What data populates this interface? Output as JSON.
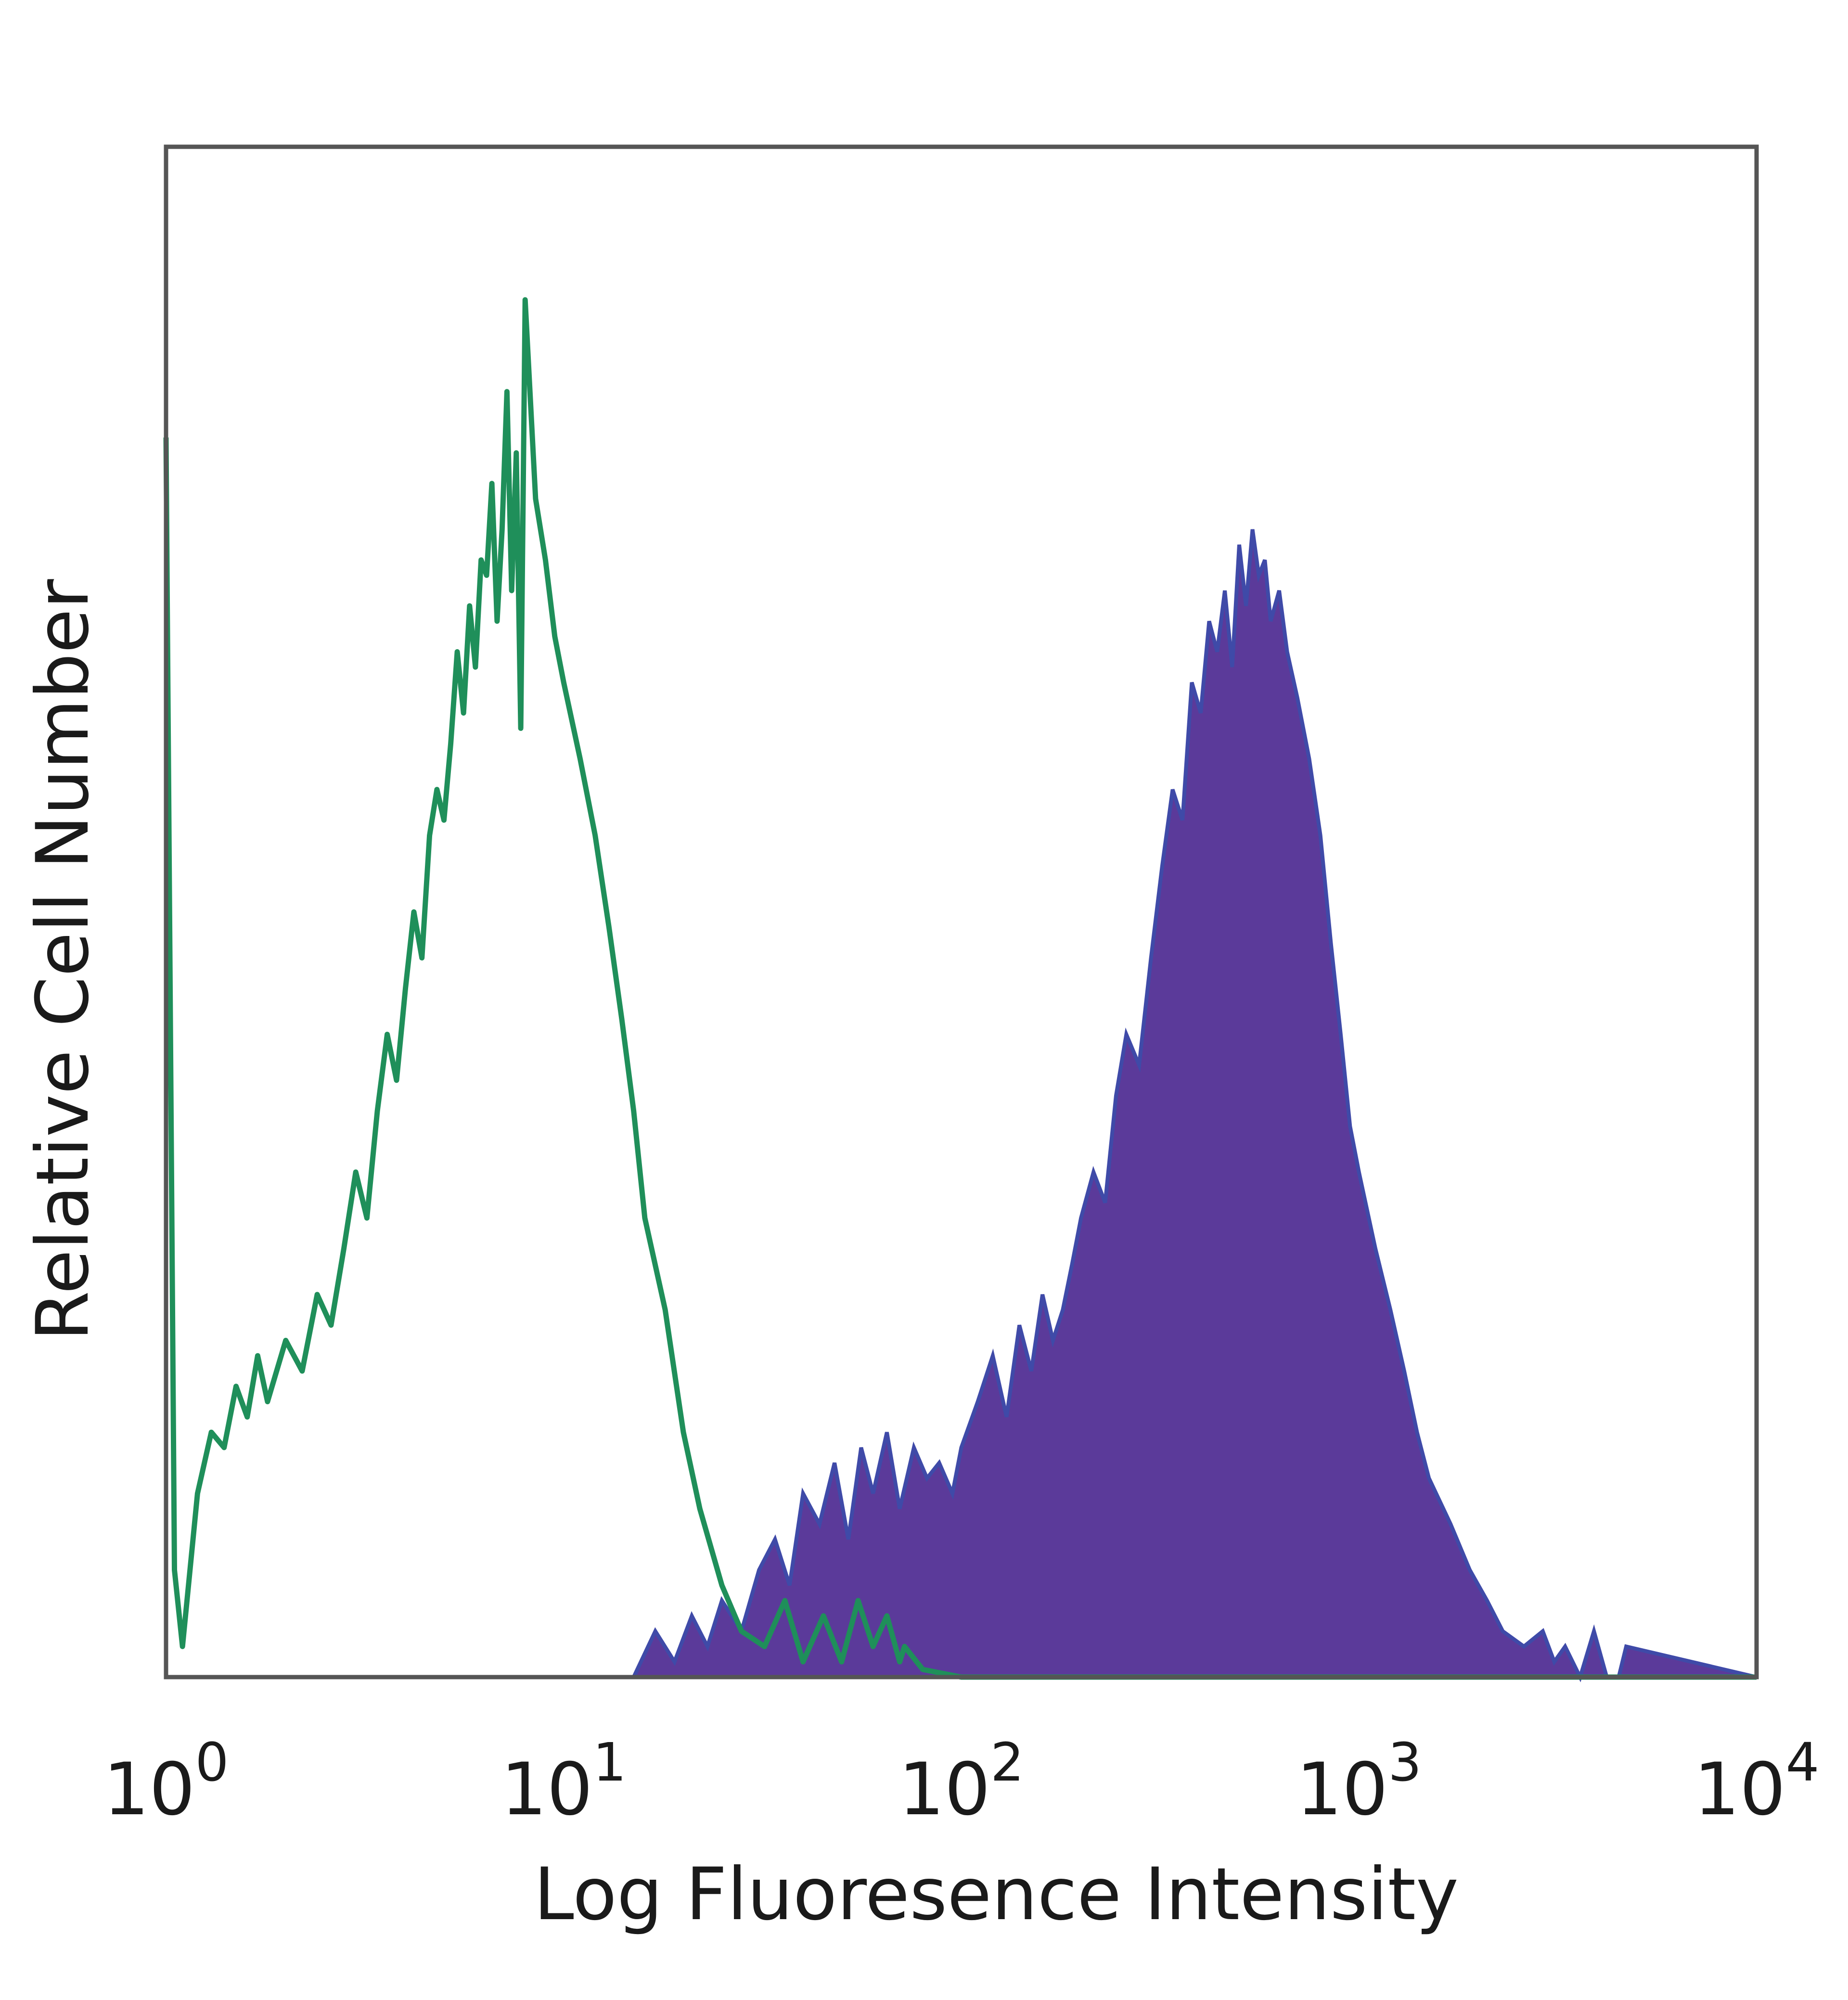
{
  "chart_data": {
    "type": "area",
    "title": "",
    "xlabel": "Log Fluoresence Intensity",
    "ylabel": "Relative Cell Number",
    "xscale": "log",
    "xlim": [
      1,
      10000
    ],
    "ylim": [
      0,
      1
    ],
    "grid": false,
    "x_ticks": [
      {
        "base": "10",
        "exp": "0",
        "value": 1
      },
      {
        "base": "10",
        "exp": "1",
        "value": 10
      },
      {
        "base": "10",
        "exp": "2",
        "value": 100
      },
      {
        "base": "10",
        "exp": "3",
        "value": 1000
      },
      {
        "base": "10",
        "exp": "4",
        "value": 10000
      }
    ],
    "series": [
      {
        "style": "outline",
        "color": "#1f8f5a",
        "x": [
          1.0,
          1.05,
          1.1,
          1.2,
          1.3,
          1.4,
          1.5,
          1.6,
          1.7,
          1.8,
          2.0,
          2.2,
          2.4,
          2.6,
          2.8,
          3.0,
          3.2,
          3.4,
          3.6,
          3.8,
          4.0,
          4.2,
          4.4,
          4.6,
          4.8,
          5.0,
          5.2,
          5.4,
          5.6,
          5.8,
          6.0,
          6.2,
          6.4,
          6.6,
          6.8,
          7.0,
          7.2,
          7.4,
          7.6,
          7.8,
          8.0,
          8.5,
          9.0,
          9.5,
          10.0,
          11.0,
          12.0,
          13.0,
          14.0,
          15.0,
          16.0,
          18.0,
          20.0,
          22.0,
          25.0,
          28.0,
          32.0,
          36.0,
          40.0,
          45.0,
          50.0,
          55.0,
          60.0,
          65.0,
          70.0,
          72.0,
          80.0,
          100.0,
          1000.0,
          10000.0
        ],
        "values": [
          0.81,
          0.07,
          0.02,
          0.12,
          0.16,
          0.15,
          0.19,
          0.17,
          0.21,
          0.18,
          0.22,
          0.2,
          0.25,
          0.23,
          0.28,
          0.33,
          0.3,
          0.37,
          0.42,
          0.39,
          0.45,
          0.5,
          0.47,
          0.55,
          0.58,
          0.56,
          0.61,
          0.67,
          0.63,
          0.7,
          0.66,
          0.73,
          0.72,
          0.78,
          0.69,
          0.75,
          0.84,
          0.71,
          0.8,
          0.62,
          0.9,
          0.77,
          0.73,
          0.68,
          0.65,
          0.6,
          0.55,
          0.49,
          0.43,
          0.37,
          0.3,
          0.24,
          0.16,
          0.11,
          0.06,
          0.03,
          0.02,
          0.05,
          0.01,
          0.04,
          0.01,
          0.05,
          0.02,
          0.04,
          0.01,
          0.02,
          0.005,
          0.0,
          0.0,
          0.0
        ]
      },
      {
        "style": "filled",
        "color": "#5b3a9a",
        "x": [
          1.0,
          10.0,
          15.0,
          17.0,
          19.0,
          21.0,
          23.0,
          25.0,
          28.0,
          31.0,
          34.0,
          37.0,
          40.0,
          44.0,
          48.0,
          52.0,
          56.0,
          60.0,
          65.0,
          70.0,
          76.0,
          82.0,
          88.0,
          95.0,
          100.0,
          110.0,
          120.0,
          130.0,
          140.0,
          150.0,
          160.0,
          170.0,
          180.0,
          190.0,
          200.0,
          215.0,
          230.0,
          245.0,
          260.0,
          280.0,
          300.0,
          320.0,
          340.0,
          360.0,
          380.0,
          400.0,
          420.0,
          440.0,
          460.0,
          480.0,
          500.0,
          520.0,
          540.0,
          560.0,
          580.0,
          600.0,
          630.0,
          660.0,
          700.0,
          750.0,
          800.0,
          850.0,
          900.0,
          950.0,
          1000.0,
          1100.0,
          1200.0,
          1300.0,
          1400.0,
          1500.0,
          1700.0,
          1900.0,
          2100.0,
          2300.0,
          2600.0,
          2900.0,
          3100.0,
          3300.0,
          3600.0,
          3900.0,
          4200.0,
          4500.0,
          4700.0,
          10000.0
        ],
        "values": [
          0.0,
          0.0,
          0.0,
          0.03,
          0.01,
          0.04,
          0.02,
          0.05,
          0.03,
          0.07,
          0.09,
          0.06,
          0.12,
          0.1,
          0.14,
          0.09,
          0.15,
          0.12,
          0.16,
          0.11,
          0.15,
          0.13,
          0.14,
          0.12,
          0.15,
          0.18,
          0.21,
          0.17,
          0.23,
          0.2,
          0.25,
          0.22,
          0.24,
          0.27,
          0.3,
          0.33,
          0.31,
          0.38,
          0.42,
          0.4,
          0.47,
          0.53,
          0.58,
          0.56,
          0.65,
          0.63,
          0.69,
          0.67,
          0.71,
          0.66,
          0.74,
          0.7,
          0.75,
          0.72,
          0.73,
          0.69,
          0.71,
          0.67,
          0.64,
          0.6,
          0.55,
          0.48,
          0.42,
          0.36,
          0.33,
          0.28,
          0.24,
          0.2,
          0.16,
          0.13,
          0.1,
          0.07,
          0.05,
          0.03,
          0.02,
          0.03,
          0.01,
          0.02,
          0.0,
          0.03,
          0.0,
          0.0,
          0.02,
          0.0
        ]
      }
    ]
  }
}
